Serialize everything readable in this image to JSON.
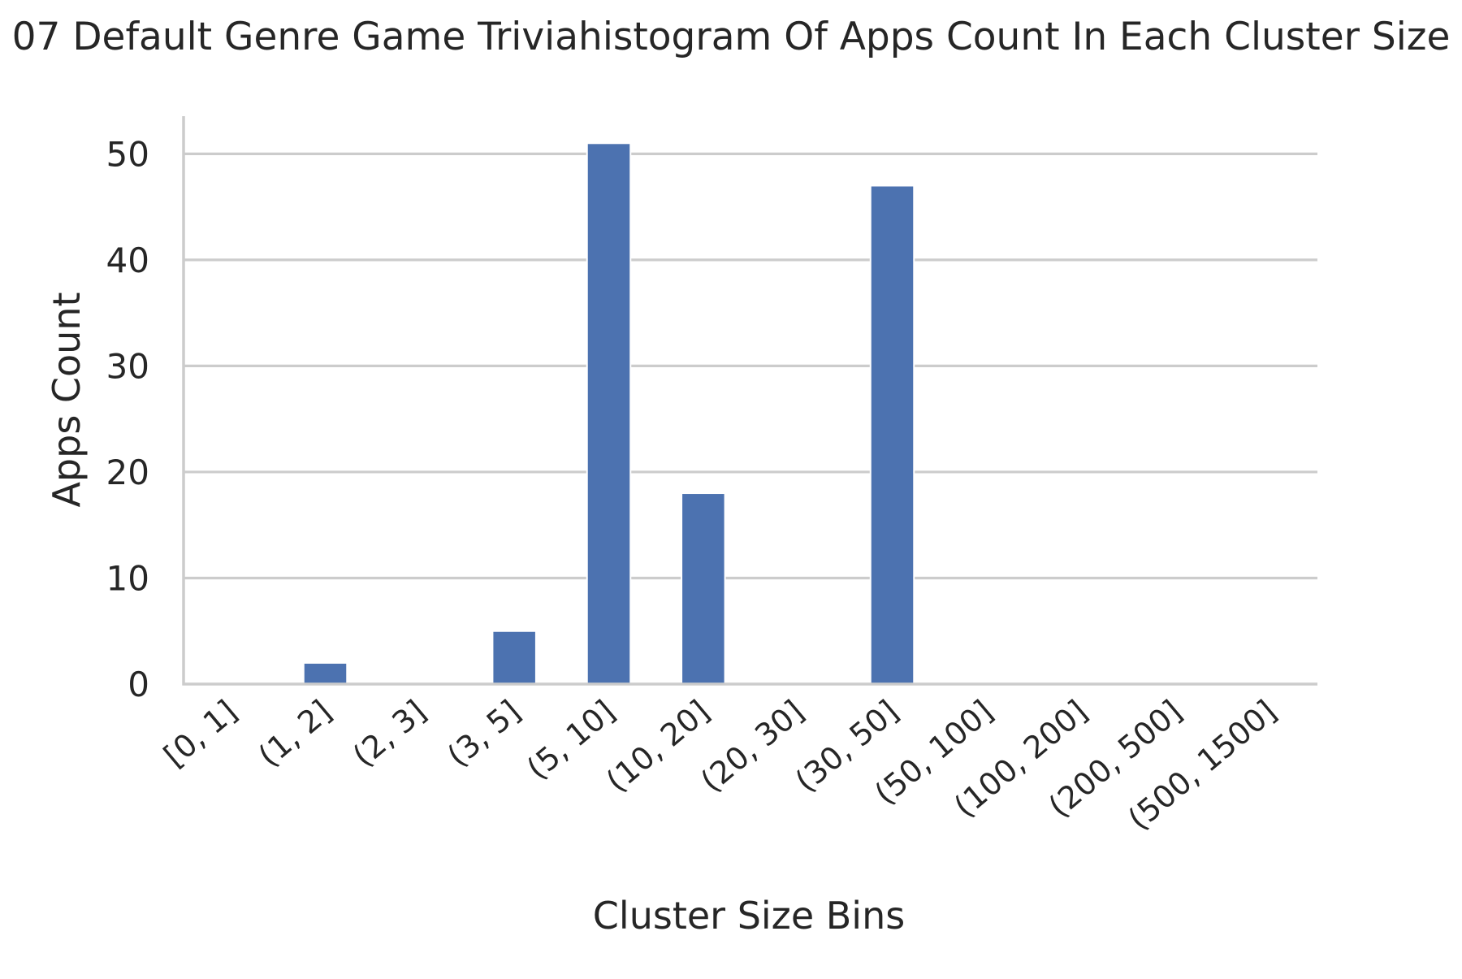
{
  "chart_data": {
    "type": "bar",
    "title": "07 Default Genre Game Triviahistogram Of Apps Count In Each Cluster Size",
    "xlabel": "Cluster Size Bins",
    "ylabel": "Apps Count",
    "categories": [
      "[0, 1]",
      "(1, 2]",
      "(2, 3]",
      "(3, 5]",
      "(5, 10]",
      "(10, 20]",
      "(20, 30]",
      "(30, 50]",
      "(50, 100]",
      "(100, 200]",
      "(200, 500]",
      "(500, 1500]"
    ],
    "values": [
      0,
      2,
      0,
      5,
      51,
      18,
      0,
      47,
      0,
      0,
      0,
      0
    ],
    "ylim": [
      0,
      53.55
    ],
    "yticks": [
      0,
      10,
      20,
      30,
      40,
      50
    ],
    "grid": "horizontal",
    "bar_color": "#4c72b0",
    "grid_color": "#cccccc",
    "axis_color": "#cccccc"
  }
}
